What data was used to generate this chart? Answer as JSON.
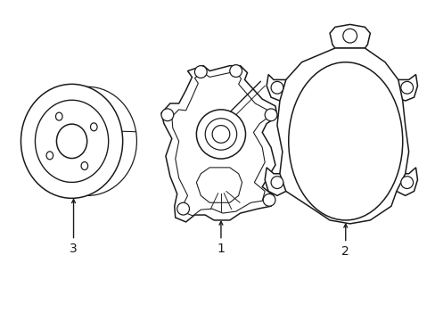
{
  "background_color": "#ffffff",
  "line_color": "#1a1a1a",
  "line_width": 1.1,
  "label_fontsize": 10,
  "fig_width": 4.89,
  "fig_height": 3.6,
  "dpi": 100
}
